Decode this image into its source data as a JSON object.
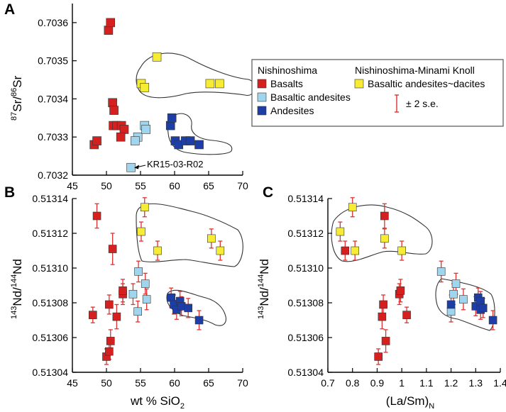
{
  "colors": {
    "basalts": "#d62020",
    "basaltic_andesites": "#9fd6ee",
    "andesites": "#1c3ea6",
    "minami": "#f6ec34",
    "error_bar": "#e03030",
    "outline": "#333333"
  },
  "legend": {
    "group1_title": "Nishinoshima",
    "group2_title": "Nishinoshima-Minami Knoll",
    "basalts": "Basalts",
    "basaltic_andesites": "Basaltic andesites",
    "andesites": "Andesites",
    "minami": "Basaltic andesites~dacites",
    "error": "± 2 s.e."
  },
  "chart_data": [
    {
      "type": "scatter",
      "panel": "A",
      "title": "",
      "xlabel": "",
      "ylabel_main": "Sr/",
      "ylabel_sup1": "87",
      "ylabel_sup2": "86",
      "ylabel_tail": "Sr",
      "xlim": [
        45,
        70
      ],
      "ylim": [
        0.7032,
        0.70365
      ],
      "xticks": [
        45,
        50,
        55,
        60,
        65,
        70
      ],
      "yticks": [
        0.7032,
        0.7033,
        0.7034,
        0.7035,
        0.7036
      ],
      "ytick_labels": [
        "0.7032",
        "0.7033",
        "0.7034",
        "0.7035",
        "0.7036"
      ],
      "annotation": "KR15-03-R02",
      "series": [
        {
          "name": "Basalts",
          "points": [
            [
              48.2,
              0.70328
            ],
            [
              48.6,
              0.70329
            ],
            [
              50.3,
              0.70358
            ],
            [
              50.6,
              0.7036
            ],
            [
              50.9,
              0.70339
            ],
            [
              51.1,
              0.70337
            ],
            [
              51.0,
              0.70333
            ],
            [
              51.5,
              0.70333
            ],
            [
              52.2,
              0.70333
            ],
            [
              52.6,
              0.70332
            ],
            [
              52.1,
              0.7033
            ]
          ]
        },
        {
          "name": "Basaltic andesites",
          "points": [
            [
              53.6,
              0.70322
            ],
            [
              54.6,
              0.7033
            ],
            [
              54.2,
              0.70329
            ],
            [
              55.6,
              0.70333
            ],
            [
              55.8,
              0.70332
            ]
          ]
        },
        {
          "name": "Andesites",
          "points": [
            [
              59.4,
              0.70333
            ],
            [
              59.6,
              0.70335
            ],
            [
              60.1,
              0.70329
            ],
            [
              60.6,
              0.70328
            ],
            [
              61.6,
              0.70329
            ],
            [
              62.3,
              0.70329
            ],
            [
              63.6,
              0.70328
            ]
          ]
        },
        {
          "name": "Basaltic andesites~dacites",
          "points": [
            [
              55.1,
              0.70344
            ],
            [
              55.6,
              0.70343
            ],
            [
              57.4,
              0.70351
            ],
            [
              65.2,
              0.70344
            ],
            [
              66.6,
              0.70344
            ]
          ]
        }
      ]
    },
    {
      "type": "scatter",
      "panel": "B",
      "title": "",
      "xlabel_main": "wt % SiO",
      "xlabel_sub": "2",
      "ylabel_main": "Nd/",
      "ylabel_sup1": "143",
      "ylabel_sup2": "144",
      "ylabel_tail": "Nd",
      "xlim": [
        45,
        70
      ],
      "ylim": [
        0.51304,
        0.51314
      ],
      "xticks": [
        45,
        50,
        55,
        60,
        65,
        70
      ],
      "yticks": [
        0.51304,
        0.51306,
        0.51308,
        0.5131,
        0.51312,
        0.51314
      ],
      "ytick_labels": [
        "0.51304",
        "0.51306",
        "0.51308",
        "0.51310",
        "0.51312",
        "0.51314"
      ],
      "series": [
        {
          "name": "Basalts",
          "points": [
            [
              48.0,
              0.513073,
              4.5e-06
            ],
            [
              48.6,
              0.51313,
              7e-06
            ],
            [
              50.0,
              0.513049,
              4.5e-06
            ],
            [
              50.4,
              0.513052,
              4.5e-06
            ],
            [
              50.6,
              0.513058,
              6.5e-06
            ],
            [
              50.4,
              0.513079,
              5.5e-06
            ],
            [
              50.9,
              0.513111,
              9e-06
            ],
            [
              51.5,
              0.513072,
              7e-06
            ],
            [
              52.4,
              0.513085,
              6e-06
            ],
            [
              52.4,
              0.513087,
              6.5e-06
            ]
          ]
        },
        {
          "name": "Basaltic andesites",
          "points": [
            [
              53.9,
              0.513085,
              6e-06
            ],
            [
              54.6,
              0.513075,
              6e-06
            ],
            [
              54.7,
              0.513098,
              6e-06
            ],
            [
              55.7,
              0.513091,
              6e-06
            ],
            [
              55.9,
              0.513082,
              6e-06
            ]
          ]
        },
        {
          "name": "Andesites",
          "points": [
            [
              59.5,
              0.513083,
              5.5e-06
            ],
            [
              59.9,
              0.513079,
              5.5e-06
            ],
            [
              60.3,
              0.513076,
              5.5e-06
            ],
            [
              60.8,
              0.513081,
              5.5e-06
            ],
            [
              61.0,
              0.513078,
              5.5e-06
            ],
            [
              62.0,
              0.513077,
              5.5e-06
            ],
            [
              63.6,
              0.51307,
              5.5e-06
            ]
          ]
        },
        {
          "name": "Basaltic andesites~dacites",
          "points": [
            [
              55.1,
              0.513121,
              5.5e-06
            ],
            [
              55.6,
              0.513135,
              5.5e-06
            ],
            [
              57.5,
              0.51311,
              5.5e-06
            ],
            [
              65.4,
              0.513117,
              5.5e-06
            ],
            [
              66.7,
              0.51311,
              5.5e-06
            ]
          ]
        }
      ]
    },
    {
      "type": "scatter",
      "panel": "C",
      "title": "",
      "xlabel_main": "(La/Sm)",
      "xlabel_sub": "N",
      "ylabel_main": "Nd/",
      "ylabel_sup1": "143",
      "ylabel_sup2": "144",
      "ylabel_tail": "Nd",
      "xlim": [
        0.7,
        1.4
      ],
      "ylim": [
        0.51304,
        0.51314
      ],
      "xticks": [
        0.7,
        0.8,
        0.9,
        1.0,
        1.1,
        1.2,
        1.3,
        1.4
      ],
      "xtick_labels": [
        "0.7",
        "0.8",
        "0.9",
        "1",
        "1.1",
        "1.2",
        "1.3",
        "1.4"
      ],
      "yticks": [
        0.51304,
        0.51306,
        0.51308,
        0.5131,
        0.51312,
        0.51314
      ],
      "ytick_labels": [
        "0.51304",
        "0.51306",
        "0.51308",
        "0.51310",
        "0.51312",
        "0.51314"
      ],
      "series": [
        {
          "name": "Basalts",
          "points": [
            [
              0.77,
              0.51311,
              5.5e-06
            ],
            [
              0.905,
              0.513049,
              4.5e-06
            ],
            [
              0.92,
              0.513072,
              7e-06
            ],
            [
              0.925,
              0.513079,
              5.5e-06
            ],
            [
              0.93,
              0.51313,
              7e-06
            ],
            [
              0.935,
              0.513058,
              6.5e-06
            ],
            [
              0.99,
              0.513085,
              6e-06
            ],
            [
              0.995,
              0.513087,
              6.5e-06
            ],
            [
              1.02,
              0.513073,
              4.5e-06
            ]
          ]
        },
        {
          "name": "Basaltic andesites",
          "points": [
            [
              1.16,
              0.513098,
              6e-06
            ],
            [
              1.2,
              0.513075,
              6e-06
            ],
            [
              1.21,
              0.513085,
              6e-06
            ],
            [
              1.22,
              0.513091,
              6e-06
            ],
            [
              1.25,
              0.513082,
              6e-06
            ]
          ]
        },
        {
          "name": "Andesites",
          "points": [
            [
              1.2,
              0.513079,
              5.5e-06
            ],
            [
              1.3,
              0.513078,
              5.5e-06
            ],
            [
              1.31,
              0.513083,
              5.5e-06
            ],
            [
              1.32,
              0.513076,
              5.5e-06
            ],
            [
              1.32,
              0.513081,
              5.5e-06
            ],
            [
              1.33,
              0.513077,
              5.5e-06
            ],
            [
              1.37,
              0.51307,
              5.5e-06
            ]
          ]
        },
        {
          "name": "Basaltic andesites~dacites",
          "points": [
            [
              0.75,
              0.513121,
              5.5e-06
            ],
            [
              0.8,
              0.513135,
              5.5e-06
            ],
            [
              0.81,
              0.51311,
              5.5e-06
            ],
            [
              0.93,
              0.513117,
              5.5e-06
            ],
            [
              1.0,
              0.51311,
              5.5e-06
            ]
          ]
        }
      ]
    }
  ]
}
